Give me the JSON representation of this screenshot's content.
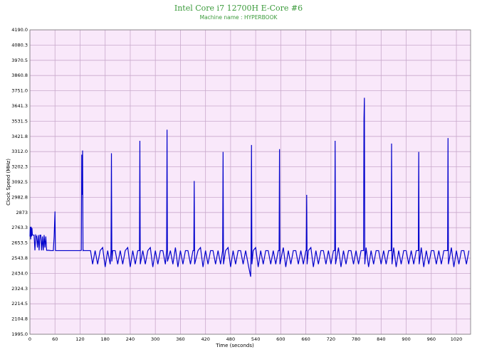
{
  "chart_data": {
    "type": "line",
    "title": "Intel Core i7 12700H E-Core #6",
    "subtitle": "Machine name : HYPERBOOK",
    "x_label": "Time (seconds)",
    "y_label": "Clock Speed (MHz)",
    "xlim": [
      0,
      1054
    ],
    "ylim": [
      1995,
      4190
    ],
    "xticks": [
      0,
      60,
      120,
      180,
      240,
      300,
      360,
      420,
      480,
      540,
      600,
      660,
      720,
      780,
      840,
      900,
      960,
      1020
    ],
    "yticks": [
      {
        "value": 1995,
        "label": "1995.0"
      },
      2104.8,
      2214.5,
      2324.3,
      {
        "value": 2434,
        "label": "2434.0"
      },
      2543.8,
      2653.5,
      2763.3,
      2873,
      2982.8,
      3092.5,
      3202.3,
      {
        "value": 3312,
        "label": "3312.0"
      },
      3421.8,
      3531.5,
      3641.3,
      {
        "value": 3751,
        "label": "3751.0"
      },
      3860.8,
      3970.5,
      4080.3,
      {
        "value": 4190,
        "label": "4190.0"
      }
    ],
    "grid": true,
    "background": "#f9e8fa",
    "grid_color": "#c9a9cc",
    "title_color": "#3a9a3a",
    "series": [
      {
        "name": "E-Core #6",
        "color": "#0000cc",
        "x": [
          0,
          1,
          2,
          3,
          4,
          5,
          6,
          10,
          12,
          14,
          16,
          18,
          20,
          22,
          24,
          26,
          28,
          30,
          32,
          34,
          36,
          38,
          40,
          45,
          50,
          56,
          58,
          60,
          61,
          62,
          64,
          80,
          100,
          120,
          123,
          124,
          125,
          126,
          127,
          128,
          130,
          135,
          140,
          145,
          150,
          156,
          162,
          168,
          174,
          180,
          186,
          192,
          194,
          195,
          196,
          198,
          204,
          210,
          216,
          222,
          228,
          234,
          240,
          246,
          252,
          258,
          262,
          263,
          264,
          270,
          276,
          282,
          288,
          294,
          300,
          306,
          312,
          318,
          324,
          327,
          328,
          329,
          336,
          342,
          348,
          354,
          360,
          366,
          372,
          378,
          384,
          390,
          392,
          393,
          394,
          402,
          408,
          414,
          420,
          426,
          432,
          438,
          444,
          450,
          456,
          461,
          462,
          463,
          468,
          474,
          480,
          486,
          492,
          498,
          504,
          510,
          516,
          522,
          528,
          529,
          530,
          531,
          534,
          540,
          546,
          552,
          558,
          564,
          570,
          576,
          582,
          588,
          594,
          596,
          597,
          598,
          606,
          612,
          618,
          624,
          630,
          636,
          642,
          648,
          654,
          660,
          661,
          662,
          663,
          666,
          672,
          678,
          684,
          690,
          696,
          702,
          708,
          714,
          720,
          726,
          729,
          730,
          731,
          738,
          744,
          750,
          756,
          762,
          768,
          774,
          780,
          786,
          792,
          798,
          799,
          800,
          801,
          804,
          810,
          816,
          822,
          828,
          834,
          840,
          846,
          852,
          858,
          864,
          865,
          866,
          870,
          876,
          882,
          888,
          894,
          900,
          906,
          912,
          918,
          924,
          929,
          930,
          931,
          936,
          942,
          948,
          954,
          960,
          966,
          972,
          978,
          984,
          990,
          996,
          999,
          1000,
          1001,
          1008,
          1014,
          1020,
          1026,
          1032,
          1038,
          1044,
          1050
        ],
        "values": [
          2700,
          2770,
          2680,
          2770,
          2700,
          2760,
          2710,
          2710,
          2600,
          2710,
          2700,
          2620,
          2710,
          2600,
          2710,
          2710,
          2600,
          2700,
          2600,
          2710,
          2620,
          2700,
          2600,
          2600,
          2598,
          2598,
          2700,
          2880,
          2600,
          2598,
          2598,
          2598,
          2598,
          2598,
          2600,
          3290,
          3000,
          3320,
          2598,
          2600,
          2598,
          2598,
          2598,
          2598,
          2500,
          2598,
          2500,
          2598,
          2620,
          2480,
          2598,
          2500,
          2598,
          3300,
          2520,
          2598,
          2598,
          2500,
          2598,
          2500,
          2598,
          2620,
          2480,
          2598,
          2500,
          2598,
          2598,
          3390,
          2500,
          2598,
          2500,
          2598,
          2620,
          2480,
          2598,
          2500,
          2598,
          2598,
          2500,
          2598,
          3470,
          2520,
          2598,
          2500,
          2620,
          2480,
          2598,
          2500,
          2598,
          2598,
          2500,
          2598,
          2598,
          3100,
          2500,
          2598,
          2620,
          2480,
          2598,
          2500,
          2598,
          2598,
          2500,
          2598,
          2500,
          2598,
          3310,
          2500,
          2598,
          2620,
          2480,
          2598,
          2500,
          2598,
          2598,
          2500,
          2598,
          2500,
          2410,
          2598,
          3360,
          2500,
          2598,
          2620,
          2480,
          2598,
          2500,
          2598,
          2598,
          2500,
          2598,
          2500,
          2598,
          2598,
          3330,
          2500,
          2620,
          2480,
          2598,
          2500,
          2598,
          2598,
          2500,
          2598,
          2500,
          2598,
          2598,
          3000,
          2500,
          2598,
          2620,
          2480,
          2598,
          2500,
          2598,
          2598,
          2500,
          2598,
          2500,
          2598,
          2598,
          3390,
          2500,
          2620,
          2480,
          2598,
          2500,
          2598,
          2598,
          2500,
          2598,
          2500,
          2598,
          2598,
          3550,
          3700,
          2500,
          2620,
          2480,
          2598,
          2500,
          2598,
          2598,
          2500,
          2598,
          2500,
          2598,
          2598,
          3370,
          2500,
          2620,
          2480,
          2598,
          2500,
          2598,
          2598,
          2500,
          2598,
          2500,
          2598,
          2598,
          3310,
          2500,
          2620,
          2480,
          2598,
          2500,
          2598,
          2598,
          2500,
          2598,
          2500,
          2598,
          2598,
          2598,
          3410,
          2500,
          2620,
          2480,
          2598,
          2500,
          2598,
          2598,
          2500,
          2598
        ]
      }
    ]
  }
}
